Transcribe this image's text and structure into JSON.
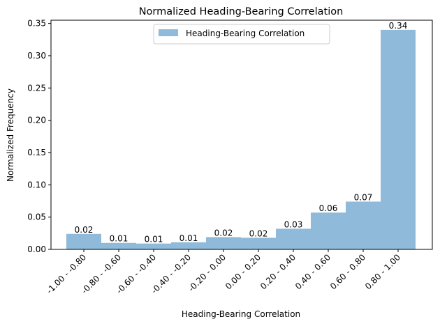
{
  "chart_data": {
    "type": "bar",
    "title": "Normalized Heading-Bearing Correlation",
    "xlabel": "Heading-Bearing Correlation",
    "ylabel": "Normalized Frequency",
    "categories": [
      "-1.00 - -0.80",
      "-0.80 - -0.60",
      "-0.60 - -0.40",
      "-0.40 - -0.20",
      "-0.20 - 0.00",
      "0.00 - 0.20",
      "0.20 - 0.40",
      "0.40 - 0.60",
      "0.60 - 0.80",
      "0.80 - 1.00"
    ],
    "series": [
      {
        "name": "Heading-Bearing Correlation",
        "values": [
          0.024,
          0.01,
          0.009,
          0.011,
          0.019,
          0.018,
          0.032,
          0.057,
          0.074,
          0.34
        ],
        "labels": [
          "0.02",
          "0.01",
          "0.01",
          "0.01",
          "0.02",
          "0.02",
          "0.03",
          "0.06",
          "0.07",
          "0.34"
        ],
        "color": "#8fbad9"
      }
    ],
    "ylim": [
      0,
      0.355
    ],
    "yticks": [
      0.0,
      0.05,
      0.1,
      0.15,
      0.2,
      0.25,
      0.3,
      0.35
    ],
    "ytick_labels": [
      "0.00",
      "0.05",
      "0.10",
      "0.15",
      "0.20",
      "0.25",
      "0.30",
      "0.35"
    ],
    "grid": false,
    "legend_position": "upper center",
    "bar_alignment": "bars offset half a bin right of their tick labels"
  }
}
